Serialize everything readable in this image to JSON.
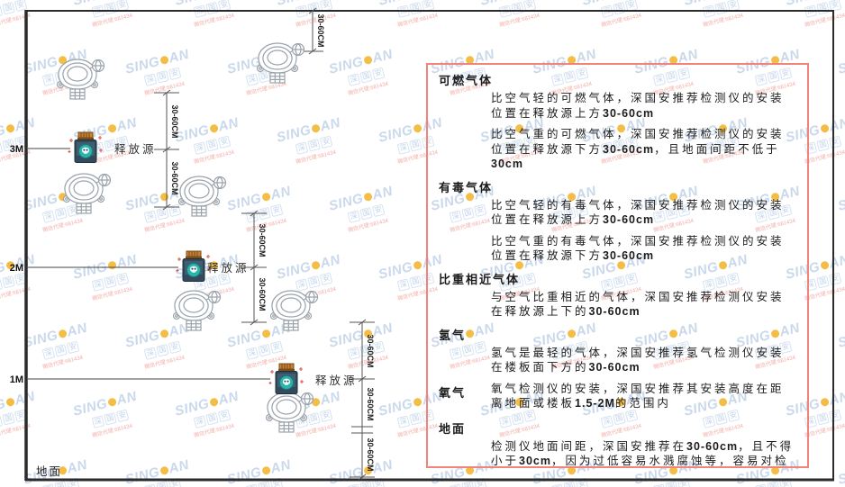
{
  "watermark": {
    "brand_left": "SING",
    "brand_right": "AN",
    "sub_chars": [
      "深",
      "国",
      "安"
    ],
    "red_text": "微信代理:681434"
  },
  "diagram": {
    "dim_label": "30-60CM",
    "release_label": "释放源",
    "ground_label": "地面",
    "levels": [
      "3M",
      "2M",
      "1M"
    ]
  },
  "panel": {
    "border_color": "#f2837b",
    "sections": [
      {
        "heading": "可燃气体",
        "paras": [
          "比空气轻的可燃气体，深国安推荐检测仪的安装位置在释放源上方30-60cm",
          "比空气重的可燃气体，深国安推荐检测仪的安装位置在释放源下方30-60cm，且地面间距不低于30cm"
        ]
      },
      {
        "heading": "有毒气体",
        "paras": [
          "比空气轻的有毒气体，深国安推荐检测仪的安装位置在释放源上方30-60cm",
          "比空气重的有毒气体，深国安推荐检测仪的安装位置在释放源下方30-60cm"
        ]
      },
      {
        "heading": "比重相近气体",
        "paras": [
          "与空气比重相近的气体，深国安推荐检测仪安装在释放源上下的30-60cm"
        ]
      },
      {
        "heading": "氢气",
        "paras": [
          "氢气是最轻的气体，深国安推荐氢气检测仪安装在楼板面下方的30-60cm"
        ]
      },
      {
        "heading": "氧气",
        "paras": [
          "氧气检测仪的安装，深国安推荐其安装高度在距离地面或楼板1.5-2M的范围内"
        ]
      },
      {
        "heading": "地面",
        "paras": [
          "检测仪地面间距，深国安推荐在30-60cm，且不得小于30cm，因为过低容易水溅腐蚀等，容易对检测仪造成伤害"
        ]
      }
    ]
  }
}
